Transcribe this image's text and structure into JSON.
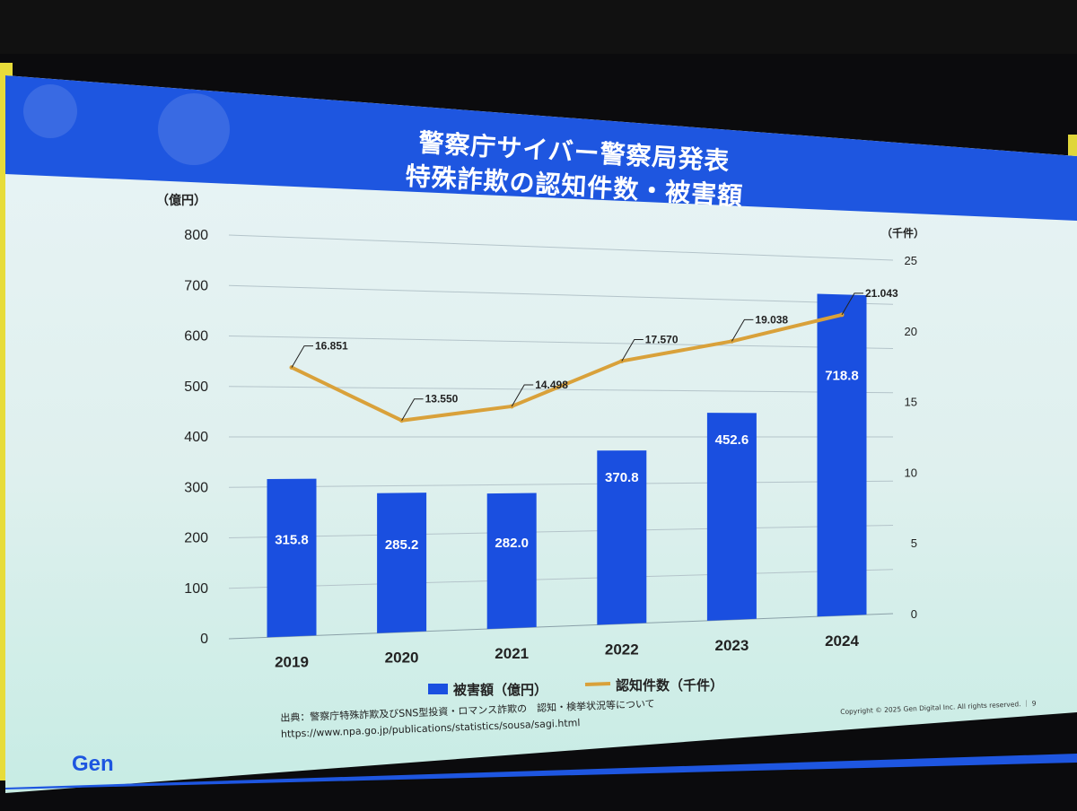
{
  "slide": {
    "title_line1": "警察庁サイバー警察局発表",
    "title_line2": "特殊詐欺の認知件数・被害額",
    "source_line1": "出典：警察庁特殊詐欺及びSNS型投資・ロマンス詐欺の　認知・検挙状況等について",
    "source_line2": "https://www.npa.go.jp/publications/statistics/sousa/sagi.html",
    "copyright": "Copyright © 2025 Gen Digital Inc. All rights reserved.",
    "page_number": "9",
    "logo": "Gen"
  },
  "chart_data": {
    "type": "bar",
    "categories": [
      "2019",
      "2020",
      "2021",
      "2022",
      "2023",
      "2024"
    ],
    "series": [
      {
        "name": "被害額（億円）",
        "type": "bar",
        "axis": "left",
        "color": "#1a4fe0",
        "values": [
          315.8,
          285.2,
          282.0,
          370.8,
          452.6,
          718.8
        ],
        "labels": [
          "315.8",
          "285.2",
          "282.0",
          "370.8",
          "452.6",
          "718.8"
        ]
      },
      {
        "name": "認知件数（千件）",
        "type": "line",
        "axis": "right",
        "color": "#d9a13a",
        "values": [
          16.851,
          13.55,
          14.498,
          17.57,
          19.038,
          21.043
        ],
        "labels": [
          "16.851",
          "13.550",
          "14.498",
          "17.570",
          "19.038",
          "21.043"
        ]
      }
    ],
    "ylabel": "（億円）",
    "y2label": "（千件）",
    "ylim": [
      0,
      800
    ],
    "y2lim": [
      0,
      25
    ],
    "yticks": [
      "0",
      "100",
      "200",
      "300",
      "400",
      "500",
      "600",
      "700",
      "800"
    ],
    "y2ticks": [
      "0",
      "5",
      "10",
      "15",
      "20",
      "25"
    ],
    "grid": true,
    "legend_position": "bottom"
  }
}
